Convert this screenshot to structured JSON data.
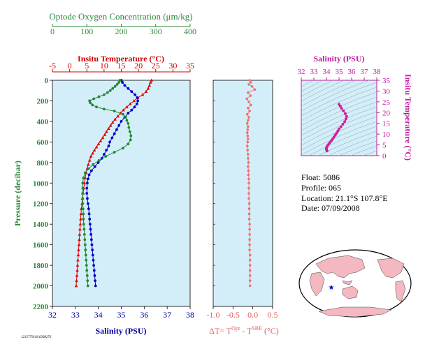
{
  "colors": {
    "oxygen": "#1e8a2e",
    "temperature": "#e00000",
    "salinity": "#0000cc",
    "delta": "#f07070",
    "ts": "#d0209f",
    "panel_bg": "#d3eef8"
  },
  "chart_data": [
    {
      "type": "line",
      "title": "",
      "ylabel": "Pressure (decibar)",
      "ylim": [
        2200,
        0
      ],
      "yticks": [
        "0",
        "200",
        "400",
        "600",
        "800",
        "1000",
        "1200",
        "1400",
        "1600",
        "1800",
        "2000",
        "2200"
      ],
      "axes": {
        "oxygen": {
          "label": "Optode Oxygen Concentration (μm/kg)",
          "range": [
            0,
            400
          ],
          "ticks": [
            "0",
            "100",
            "200",
            "300",
            "400"
          ]
        },
        "temperature": {
          "label": "Insitu Temperature (°C)",
          "range": [
            -5,
            35
          ],
          "ticks": [
            "-5",
            "0",
            "5",
            "10",
            "15",
            "20",
            "25",
            "30",
            "35"
          ]
        },
        "salinity": {
          "label": "Salinity (PSU)",
          "range": [
            32,
            38
          ],
          "ticks": [
            "32",
            "33",
            "34",
            "35",
            "36",
            "37",
            "38"
          ]
        }
      },
      "series": [
        {
          "name": "Insitu Temperature (°C)",
          "axis": "temperature",
          "marker": "triangle",
          "points": [
            [
              23.8,
              0
            ],
            [
              23.5,
              20
            ],
            [
              23.2,
              50
            ],
            [
              22.8,
              80
            ],
            [
              22.2,
              110
            ],
            [
              21.2,
              140
            ],
            [
              19.8,
              170
            ],
            [
              18.7,
              200
            ],
            [
              17.6,
              230
            ],
            [
              16.6,
              260
            ],
            [
              15.6,
              290
            ],
            [
              14.8,
              320
            ],
            [
              14.0,
              350
            ],
            [
              13.2,
              380
            ],
            [
              12.5,
              410
            ],
            [
              11.9,
              440
            ],
            [
              11.3,
              470
            ],
            [
              10.7,
              500
            ],
            [
              10.2,
              530
            ],
            [
              9.6,
              560
            ],
            [
              9.0,
              590
            ],
            [
              8.4,
              620
            ],
            [
              7.8,
              650
            ],
            [
              7.2,
              680
            ],
            [
              6.7,
              710
            ],
            [
              6.2,
              740
            ],
            [
              5.8,
              780
            ],
            [
              5.4,
              820
            ],
            [
              5.1,
              860
            ],
            [
              4.8,
              900
            ],
            [
              4.5,
              950
            ],
            [
              4.3,
              1000
            ],
            [
              4.1,
              1050
            ],
            [
              3.9,
              1100
            ],
            [
              3.7,
              1150
            ],
            [
              3.6,
              1200
            ],
            [
              3.4,
              1250
            ],
            [
              3.3,
              1300
            ],
            [
              3.2,
              1350
            ],
            [
              3.1,
              1400
            ],
            [
              3.0,
              1450
            ],
            [
              2.9,
              1500
            ],
            [
              2.8,
              1550
            ],
            [
              2.7,
              1600
            ],
            [
              2.6,
              1650
            ],
            [
              2.5,
              1700
            ],
            [
              2.4,
              1750
            ],
            [
              2.3,
              1800
            ],
            [
              2.2,
              1850
            ],
            [
              2.1,
              1900
            ],
            [
              2.0,
              1950
            ],
            [
              1.9,
              2000
            ]
          ]
        },
        {
          "name": "Salinity (PSU)",
          "axis": "salinity",
          "marker": "circle",
          "points": [
            [
              35.0,
              0
            ],
            [
              35.05,
              20
            ],
            [
              35.15,
              50
            ],
            [
              35.3,
              80
            ],
            [
              35.45,
              110
            ],
            [
              35.6,
              140
            ],
            [
              35.7,
              170
            ],
            [
              35.72,
              200
            ],
            [
              35.68,
              230
            ],
            [
              35.58,
              260
            ],
            [
              35.45,
              290
            ],
            [
              35.3,
              320
            ],
            [
              35.15,
              360
            ],
            [
              35.0,
              400
            ],
            [
              34.9,
              440
            ],
            [
              34.8,
              480
            ],
            [
              34.7,
              520
            ],
            [
              34.6,
              560
            ],
            [
              34.5,
              600
            ],
            [
              34.45,
              640
            ],
            [
              34.35,
              680
            ],
            [
              34.25,
              720
            ],
            [
              34.15,
              760
            ],
            [
              34.0,
              800
            ],
            [
              33.85,
              840
            ],
            [
              33.7,
              880
            ],
            [
              33.6,
              920
            ],
            [
              33.55,
              960
            ],
            [
              33.52,
              1000
            ],
            [
              33.5,
              1050
            ],
            [
              33.5,
              1100
            ],
            [
              33.52,
              1150
            ],
            [
              33.55,
              1200
            ],
            [
              33.58,
              1250
            ],
            [
              33.6,
              1300
            ],
            [
              33.62,
              1350
            ],
            [
              33.64,
              1400
            ],
            [
              33.66,
              1450
            ],
            [
              33.68,
              1500
            ],
            [
              33.7,
              1550
            ],
            [
              33.72,
              1600
            ],
            [
              33.74,
              1650
            ],
            [
              33.76,
              1700
            ],
            [
              33.78,
              1750
            ],
            [
              33.8,
              1800
            ],
            [
              33.82,
              1850
            ],
            [
              33.84,
              1900
            ],
            [
              33.86,
              1950
            ],
            [
              33.88,
              2000
            ]
          ]
        },
        {
          "name": "Optode Oxygen Concentration (μm/kg)",
          "axis": "oxygen",
          "marker": "circle",
          "points": [
            [
              196,
              0
            ],
            [
              193,
              20
            ],
            [
              188,
              40
            ],
            [
              182,
              60
            ],
            [
              175,
              80
            ],
            [
              168,
              100
            ],
            [
              160,
              120
            ],
            [
              150,
              140
            ],
            [
              135,
              160
            ],
            [
              120,
              180
            ],
            [
              108,
              200
            ],
            [
              110,
              220
            ],
            [
              116,
              240
            ],
            [
              128,
              260
            ],
            [
              150,
              280
            ],
            [
              180,
              300
            ],
            [
              205,
              330
            ],
            [
              213,
              360
            ],
            [
              216,
              390
            ],
            [
              220,
              420
            ],
            [
              222,
              460
            ],
            [
              225,
              500
            ],
            [
              228,
              540
            ],
            [
              227,
              580
            ],
            [
              220,
              620
            ],
            [
              205,
              660
            ],
            [
              180,
              700
            ],
            [
              155,
              740
            ],
            [
              135,
              780
            ],
            [
              118,
              820
            ],
            [
              105,
              860
            ],
            [
              95,
              900
            ],
            [
              90,
              950
            ],
            [
              88,
              1000
            ],
            [
              88,
              1050
            ],
            [
              88,
              1100
            ],
            [
              88,
              1150
            ],
            [
              88,
              1200
            ],
            [
              89,
              1250
            ],
            [
              90,
              1300
            ],
            [
              90,
              1350
            ],
            [
              91,
              1400
            ],
            [
              92,
              1450
            ],
            [
              93,
              1500
            ],
            [
              94,
              1550
            ],
            [
              95,
              1600
            ],
            [
              96,
              1650
            ],
            [
              97,
              1700
            ],
            [
              98,
              1750
            ],
            [
              99,
              1800
            ],
            [
              100,
              1850
            ],
            [
              101,
              1900
            ],
            [
              102,
              1950
            ],
            [
              103,
              2000
            ]
          ]
        }
      ]
    },
    {
      "type": "scatter",
      "title": "",
      "xlabel": "ΔT= T^Opt - T^SBE (°C)",
      "xlim": [
        -1.0,
        0.5
      ],
      "xticks": [
        "-1.0",
        "-0.5",
        "0.0",
        "0.5"
      ],
      "ylim": [
        2200,
        0
      ],
      "points": [
        [
          -0.08,
          0
        ],
        [
          -0.05,
          20
        ],
        [
          -0.1,
          40
        ],
        [
          -0.02,
          60
        ],
        [
          0.05,
          90
        ],
        [
          -0.12,
          120
        ],
        [
          -0.06,
          150
        ],
        [
          -0.15,
          180
        ],
        [
          -0.1,
          210
        ],
        [
          -0.05,
          240
        ],
        [
          -0.12,
          270
        ],
        [
          -0.08,
          300
        ],
        [
          -0.14,
          330
        ],
        [
          -0.1,
          360
        ],
        [
          -0.12,
          390
        ],
        [
          -0.14,
          420
        ],
        [
          -0.12,
          450
        ],
        [
          -0.13,
          480
        ],
        [
          -0.14,
          510
        ],
        [
          -0.13,
          540
        ],
        [
          -0.12,
          570
        ],
        [
          -0.13,
          600
        ],
        [
          -0.14,
          640
        ],
        [
          -0.13,
          680
        ],
        [
          -0.12,
          720
        ],
        [
          -0.12,
          760
        ],
        [
          -0.11,
          800
        ],
        [
          -0.12,
          840
        ],
        [
          -0.11,
          880
        ],
        [
          -0.11,
          920
        ],
        [
          -0.1,
          960
        ],
        [
          -0.1,
          1000
        ],
        [
          -0.1,
          1050
        ],
        [
          -0.1,
          1100
        ],
        [
          -0.1,
          1150
        ],
        [
          -0.09,
          1200
        ],
        [
          -0.09,
          1250
        ],
        [
          -0.09,
          1300
        ],
        [
          -0.09,
          1350
        ],
        [
          -0.08,
          1400
        ],
        [
          -0.08,
          1450
        ],
        [
          -0.08,
          1500
        ],
        [
          -0.08,
          1550
        ],
        [
          -0.08,
          1600
        ],
        [
          -0.08,
          1650
        ],
        [
          -0.07,
          1700
        ],
        [
          -0.07,
          1750
        ],
        [
          -0.07,
          1800
        ],
        [
          -0.07,
          1850
        ],
        [
          -0.07,
          1900
        ],
        [
          -0.07,
          1950
        ],
        [
          -0.07,
          2000
        ]
      ]
    },
    {
      "type": "scatter",
      "title": "",
      "xlabel": "Salinity (PSU)",
      "ylabel": "Insitu Temperature (°C)",
      "xlim": [
        32,
        38
      ],
      "ylim": [
        0,
        35
      ],
      "xticks": [
        "32",
        "33",
        "34",
        "35",
        "36",
        "37",
        "38"
      ],
      "yticks": [
        "0",
        "5",
        "10",
        "15",
        "20",
        "25",
        "30",
        "35"
      ],
      "points": [
        [
          35.0,
          23.8
        ],
        [
          35.1,
          23.0
        ],
        [
          35.2,
          22.0
        ],
        [
          35.35,
          20.8
        ],
        [
          35.5,
          19.5
        ],
        [
          35.6,
          18.2
        ],
        [
          35.55,
          17.0
        ],
        [
          35.45,
          15.8
        ],
        [
          35.3,
          14.6
        ],
        [
          35.15,
          13.4
        ],
        [
          35.0,
          12.4
        ],
        [
          34.9,
          11.4
        ],
        [
          34.8,
          10.4
        ],
        [
          34.7,
          9.5
        ],
        [
          34.6,
          8.6
        ],
        [
          34.5,
          7.8
        ],
        [
          34.4,
          7.0
        ],
        [
          34.3,
          6.2
        ],
        [
          34.2,
          5.5
        ],
        [
          34.1,
          4.8
        ],
        [
          34.05,
          4.2
        ],
        [
          34.0,
          3.6
        ],
        [
          34.0,
          3.0
        ],
        [
          34.02,
          2.5
        ],
        [
          34.05,
          2.2
        ]
      ]
    }
  ],
  "oxygen_label": "Optode Oxygen Concentration (μm/kg)",
  "temperature_label": "Insitu Temperature (°C)",
  "salinity_label": "Salinity (PSU)",
  "pressure_label": "Pressure (decibar)",
  "delta_label_prefix": "ΔT= T",
  "delta_sup1": "Opt",
  "delta_mid": " - T",
  "delta_sup2": "SBE",
  "delta_suffix": " (°C)",
  "ts_salinity_label": "Salinity (PSU)",
  "ts_temperature_label": "Insitu Temperature (°C)",
  "info": {
    "float": "Float:  5086",
    "profile": "Profile:  065",
    "location": "Location:  21.1°S  107.8°E",
    "date": "Date:  07/09/2008"
  },
  "footer_id": "1215779118.6308276"
}
